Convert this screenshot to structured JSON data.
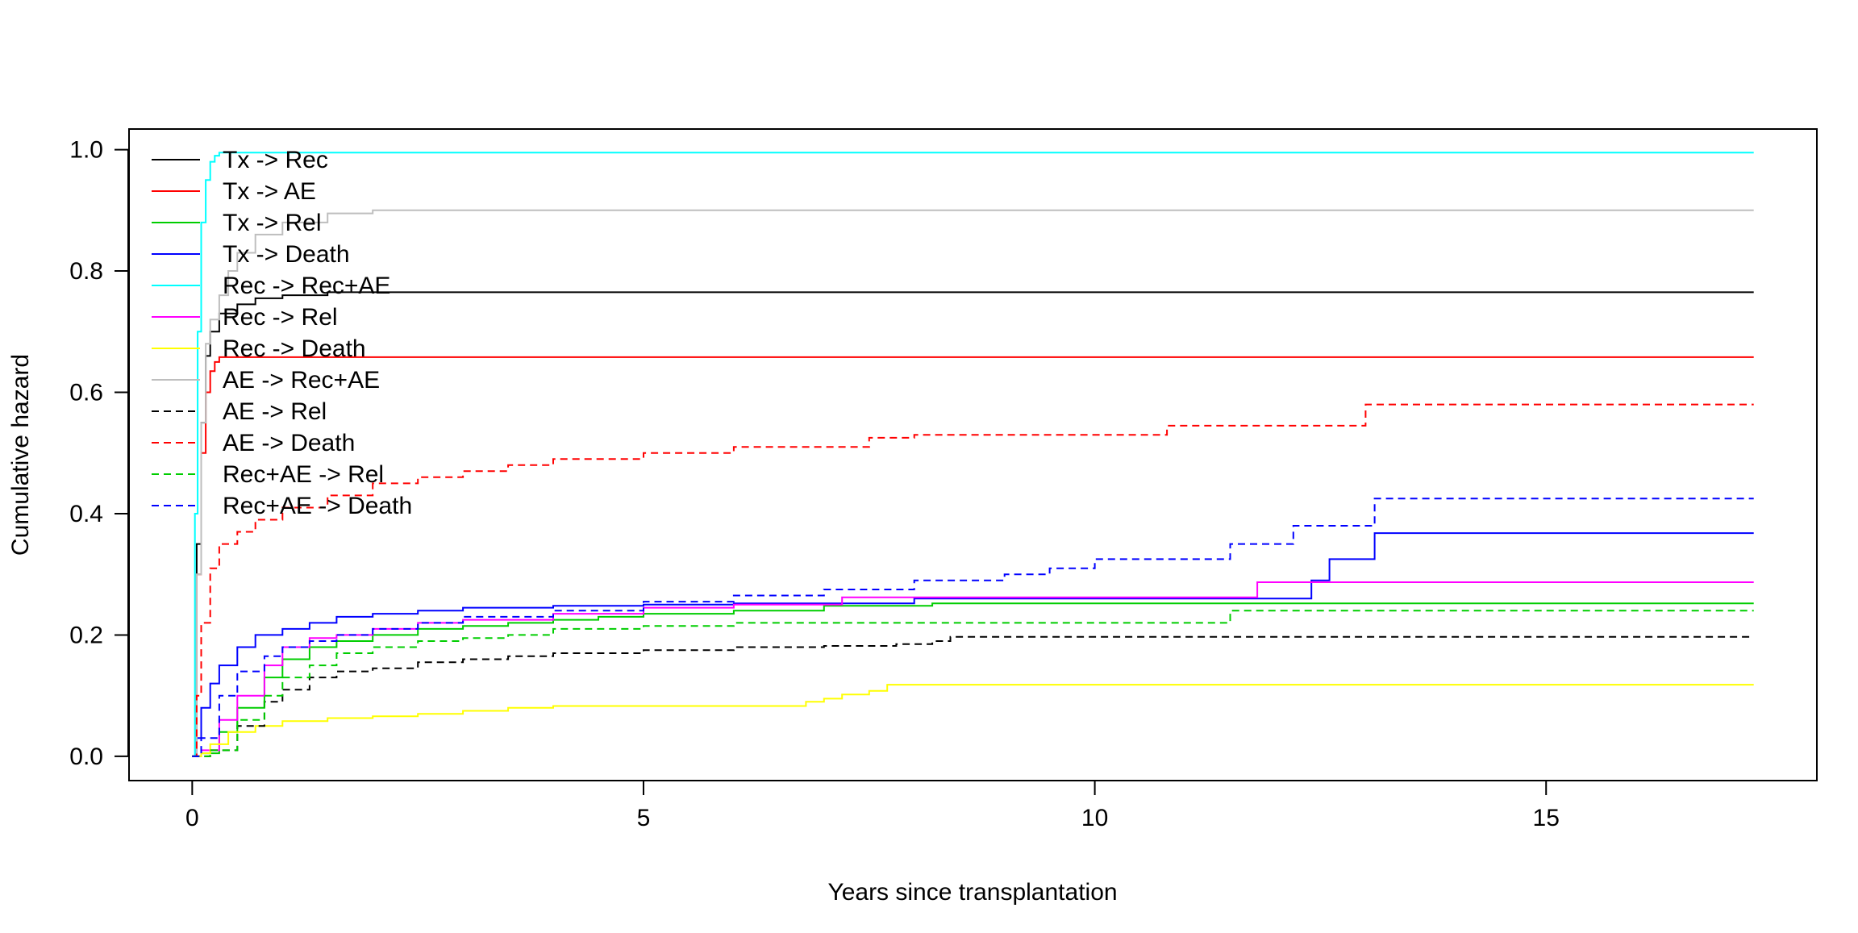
{
  "chart_data": {
    "type": "line",
    "title": "",
    "xlabel": "Years since transplantation",
    "ylabel": "Cumulative hazard",
    "xlim": [
      -0.7,
      18
    ],
    "ylim": [
      -0.04,
      1.034
    ],
    "xticks": [
      0,
      5,
      10,
      15
    ],
    "yticks": [
      0.0,
      0.2,
      0.4,
      0.6,
      0.8,
      1.0
    ],
    "xtick_labels": [
      "0",
      "5",
      "10",
      "15"
    ],
    "ytick_labels": [
      "0.0",
      "0.2",
      "0.4",
      "0.6",
      "0.8",
      "1.0"
    ],
    "step": true,
    "grid": false,
    "legend_position": "top-left",
    "series": [
      {
        "name": "Tx -> Rec",
        "color": "#000000",
        "dash": "solid",
        "x": [
          0,
          0.05,
          0.1,
          0.15,
          0.2,
          0.3,
          0.5,
          0.7,
          1.0,
          1.5,
          17.3
        ],
        "y": [
          0,
          0.35,
          0.55,
          0.66,
          0.7,
          0.73,
          0.745,
          0.755,
          0.76,
          0.765,
          0.765
        ]
      },
      {
        "name": "Tx -> AE",
        "color": "#ff0000",
        "dash": "solid",
        "x": [
          0,
          0.05,
          0.1,
          0.15,
          0.2,
          0.25,
          0.3,
          17.3
        ],
        "y": [
          0,
          0.3,
          0.5,
          0.6,
          0.635,
          0.65,
          0.658,
          0.658
        ]
      },
      {
        "name": "Tx -> Rel",
        "color": "#00cd00",
        "dash": "solid",
        "x": [
          0,
          0.1,
          0.3,
          0.5,
          0.8,
          1.0,
          1.3,
          1.6,
          2.0,
          2.5,
          3.0,
          3.5,
          4.0,
          4.5,
          5.0,
          6.0,
          7.0,
          8.2,
          17.3
        ],
        "y": [
          0,
          0.005,
          0.04,
          0.08,
          0.13,
          0.16,
          0.18,
          0.19,
          0.2,
          0.21,
          0.215,
          0.22,
          0.225,
          0.23,
          0.235,
          0.24,
          0.248,
          0.252,
          0.252
        ]
      },
      {
        "name": "Tx -> Death",
        "color": "#0000ff",
        "dash": "solid",
        "x": [
          0,
          0.05,
          0.1,
          0.2,
          0.3,
          0.5,
          0.7,
          1.0,
          1.3,
          1.6,
          2.0,
          2.5,
          3.0,
          4.0,
          5.0,
          6.0,
          8.0,
          12.4,
          12.6,
          13.1,
          17.3
        ],
        "y": [
          0,
          0.03,
          0.08,
          0.12,
          0.15,
          0.18,
          0.2,
          0.21,
          0.22,
          0.23,
          0.235,
          0.24,
          0.245,
          0.248,
          0.25,
          0.252,
          0.26,
          0.29,
          0.325,
          0.368,
          0.368
        ]
      },
      {
        "name": "Rec -> Rec+AE",
        "color": "#00ffff",
        "dash": "solid",
        "x": [
          0,
          0.03,
          0.06,
          0.1,
          0.15,
          0.2,
          0.25,
          0.3,
          17.3
        ],
        "y": [
          0,
          0.4,
          0.7,
          0.88,
          0.95,
          0.98,
          0.99,
          0.995,
          0.995
        ]
      },
      {
        "name": "Rec -> Rel",
        "color": "#ff00ff",
        "dash": "solid",
        "x": [
          0,
          0.1,
          0.3,
          0.5,
          0.8,
          1.0,
          1.3,
          1.6,
          2.0,
          2.5,
          3.0,
          4.0,
          5.0,
          6.0,
          7.2,
          11.8,
          17.3
        ],
        "y": [
          0,
          0.01,
          0.06,
          0.1,
          0.15,
          0.18,
          0.195,
          0.2,
          0.21,
          0.22,
          0.225,
          0.235,
          0.245,
          0.25,
          0.262,
          0.287,
          0.287
        ]
      },
      {
        "name": "Rec -> Death",
        "color": "#ffff00",
        "dash": "solid",
        "x": [
          0,
          0.1,
          0.2,
          0.4,
          0.7,
          1.0,
          1.5,
          2.0,
          2.5,
          3.0,
          3.5,
          4.0,
          6.8,
          7.0,
          7.2,
          7.5,
          7.7,
          17.3
        ],
        "y": [
          0,
          0.005,
          0.02,
          0.04,
          0.05,
          0.058,
          0.063,
          0.066,
          0.07,
          0.075,
          0.08,
          0.083,
          0.09,
          0.095,
          0.102,
          0.108,
          0.118,
          0.118
        ]
      },
      {
        "name": "AE -> Rec+AE",
        "color": "#bebebe",
        "dash": "solid",
        "x": [
          0,
          0.05,
          0.1,
          0.15,
          0.2,
          0.3,
          0.4,
          0.5,
          0.7,
          1.0,
          1.5,
          2.0,
          17.3
        ],
        "y": [
          0,
          0.3,
          0.55,
          0.68,
          0.72,
          0.76,
          0.8,
          0.83,
          0.86,
          0.88,
          0.895,
          0.9,
          0.9
        ]
      },
      {
        "name": "AE -> Rel",
        "color": "#000000",
        "dash": "dashed",
        "x": [
          0,
          0.2,
          0.5,
          0.8,
          1.0,
          1.3,
          1.6,
          2.0,
          2.5,
          3.0,
          3.5,
          4.0,
          5.0,
          6.0,
          7.0,
          7.8,
          8.2,
          8.4,
          17.3
        ],
        "y": [
          0,
          0.01,
          0.05,
          0.09,
          0.11,
          0.13,
          0.14,
          0.145,
          0.155,
          0.16,
          0.165,
          0.17,
          0.175,
          0.18,
          0.182,
          0.185,
          0.19,
          0.197,
          0.197
        ]
      },
      {
        "name": "AE -> Death",
        "color": "#ff0000",
        "dash": "dashed",
        "x": [
          0,
          0.05,
          0.1,
          0.2,
          0.3,
          0.5,
          0.7,
          1.0,
          1.5,
          2.0,
          2.5,
          3.0,
          3.5,
          4.0,
          5.0,
          6.0,
          7.5,
          8.0,
          10.8,
          13.0,
          17.3
        ],
        "y": [
          0,
          0.1,
          0.22,
          0.31,
          0.35,
          0.37,
          0.39,
          0.41,
          0.43,
          0.45,
          0.46,
          0.47,
          0.48,
          0.49,
          0.5,
          0.51,
          0.525,
          0.53,
          0.545,
          0.58,
          0.58
        ]
      },
      {
        "name": "Rec+AE -> Rel",
        "color": "#00cd00",
        "dash": "dashed",
        "x": [
          0,
          0.2,
          0.5,
          0.8,
          1.0,
          1.3,
          1.6,
          2.0,
          2.5,
          3.0,
          3.5,
          4.0,
          5.0,
          6.0,
          11.5,
          17.3
        ],
        "y": [
          0,
          0.01,
          0.06,
          0.1,
          0.13,
          0.15,
          0.17,
          0.18,
          0.19,
          0.195,
          0.2,
          0.21,
          0.215,
          0.22,
          0.24,
          0.24
        ]
      },
      {
        "name": "Rec+AE -> Death",
        "color": "#0000ff",
        "dash": "dashed",
        "x": [
          0,
          0.1,
          0.3,
          0.5,
          0.8,
          1.0,
          1.3,
          1.6,
          2.0,
          2.5,
          3.0,
          4.0,
          5.0,
          6.0,
          7.0,
          8.0,
          9.0,
          9.5,
          10.0,
          11.5,
          12.2,
          13.1,
          17.3
        ],
        "y": [
          0,
          0.03,
          0.1,
          0.14,
          0.165,
          0.18,
          0.19,
          0.2,
          0.21,
          0.22,
          0.23,
          0.24,
          0.255,
          0.265,
          0.275,
          0.29,
          0.3,
          0.31,
          0.325,
          0.35,
          0.38,
          0.425,
          0.425
        ]
      }
    ]
  }
}
